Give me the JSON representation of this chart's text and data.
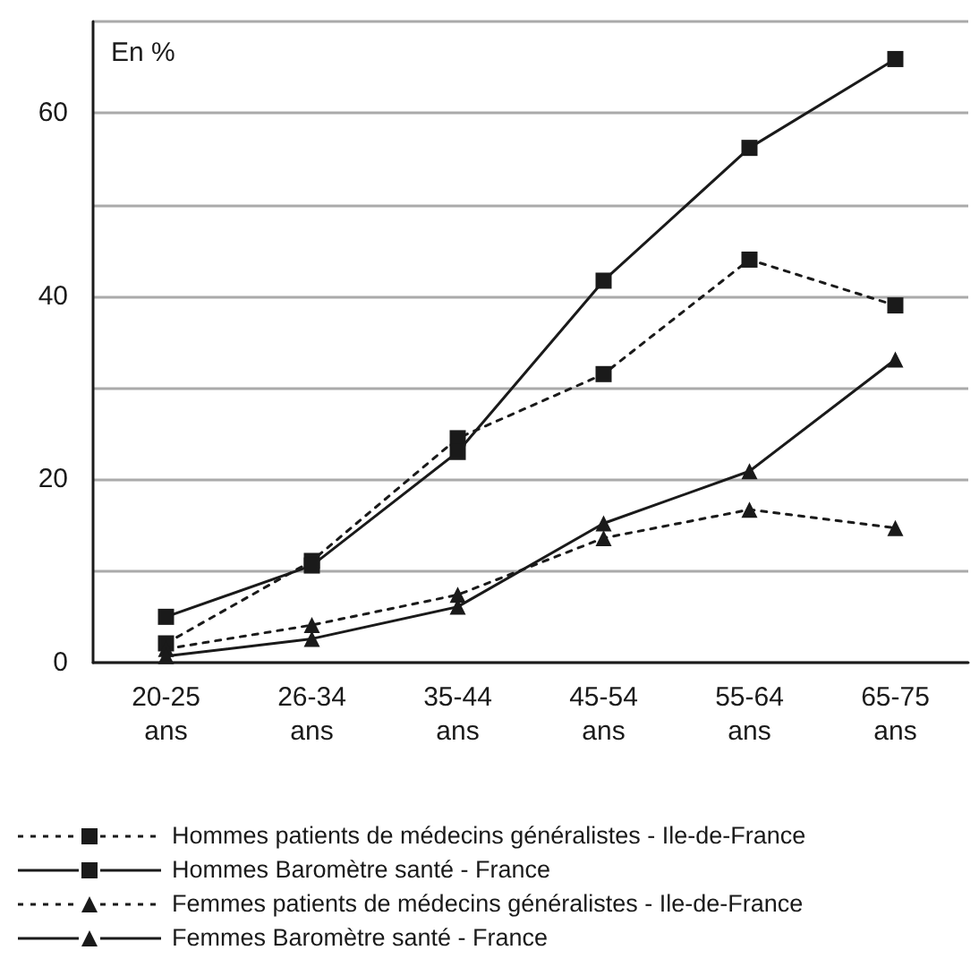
{
  "chart_data": {
    "type": "line",
    "categories": [
      "20-25\nans",
      "26-34\nans",
      "35-44\nans",
      "45-54\nans",
      "55-64\nans",
      "65-75\nans"
    ],
    "series": [
      {
        "name": "Hommes patients de médecins généralistes - Ile-de-France",
        "color": "#1a1a1a",
        "marker": "square",
        "line_style": "dotted",
        "values": [
          2.1,
          11.1,
          24.5,
          31.5,
          44.0,
          39.0
        ]
      },
      {
        "name": "Hommes Baromètre santé - France",
        "color": "#1a1a1a",
        "marker": "square",
        "line_style": "solid",
        "values": [
          5.0,
          10.6,
          23.0,
          41.7,
          56.2,
          65.9
        ]
      },
      {
        "name": "Femmes patients de médecins généralistes - Ile-de-France",
        "color": "#1a1a1a",
        "marker": "triangle",
        "line_style": "dotted",
        "values": [
          1.5,
          4.1,
          7.4,
          13.6,
          16.7,
          14.7
        ]
      },
      {
        "name": "Femmes Baromètre santé - France",
        "color": "#1a1a1a",
        "marker": "triangle",
        "line_style": "solid",
        "values": [
          0.7,
          2.6,
          6.1,
          15.2,
          20.9,
          33.1
        ]
      }
    ],
    "annotations": [
      "En %"
    ],
    "ylim": [
      0,
      70
    ],
    "yticks": [
      0,
      {
        "value": 10,
        "label": null
      },
      20,
      {
        "value": 30,
        "label": null
      },
      40,
      {
        "value": 50,
        "label": null
      },
      60,
      {
        "value": 70,
        "label": null
      }
    ],
    "grid": "y",
    "legend": "bottom"
  }
}
